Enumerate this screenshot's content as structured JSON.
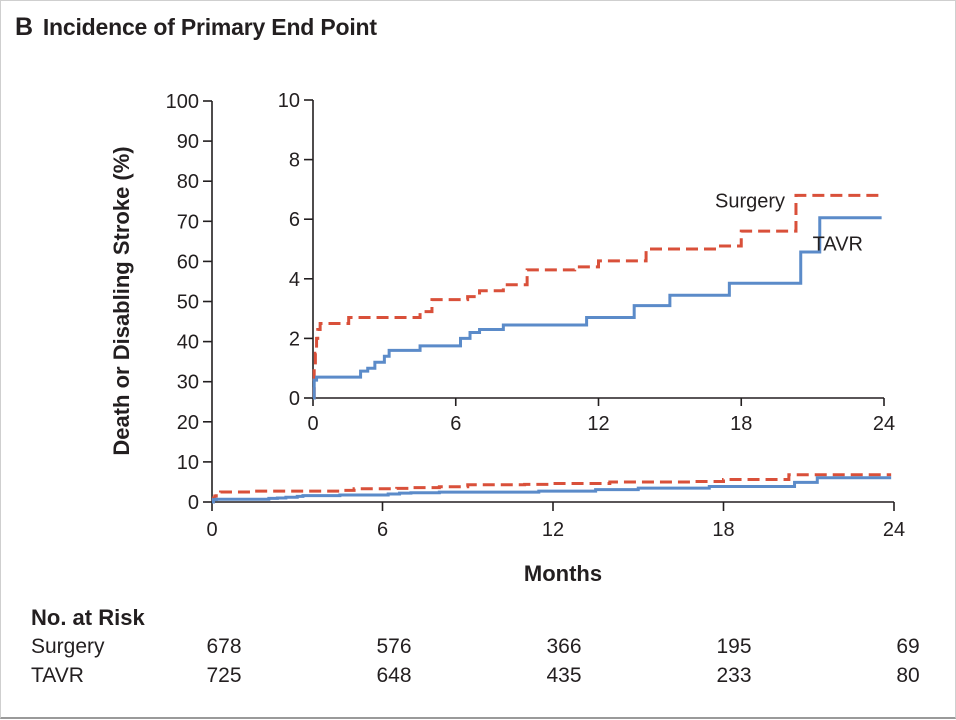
{
  "panel": {
    "letter": "B",
    "title": "Incidence of Primary End Point"
  },
  "colors": {
    "surgery": "#d9503a",
    "tavr": "#5b8bc9",
    "axis": "#231f20"
  },
  "chart_data": [
    {
      "id": "main",
      "type": "line",
      "step": true,
      "xlabel": "Months",
      "ylabel": "Death or Disabling Stroke (%)",
      "xlim": [
        0,
        24
      ],
      "ylim": [
        0,
        100
      ],
      "xticks": [
        0,
        6,
        12,
        18,
        24
      ],
      "yticks": [
        0,
        10,
        20,
        30,
        40,
        50,
        60,
        70,
        80,
        90,
        100
      ],
      "series": [
        {
          "name": "Surgery",
          "style": "dashed",
          "x": [
            0,
            0.05,
            0.1,
            0.15,
            0.2,
            0.3,
            1.5,
            4,
            4.5,
            5,
            6.5,
            7,
            8,
            9,
            11,
            12,
            14,
            15,
            17,
            18,
            19,
            20.3,
            23.9
          ],
          "y": [
            0,
            1.0,
            1.5,
            2.0,
            2.3,
            2.5,
            2.7,
            2.7,
            2.9,
            3.3,
            3.4,
            3.6,
            3.8,
            4.3,
            4.4,
            4.6,
            5.0,
            5.0,
            5.1,
            5.6,
            5.6,
            6.8,
            6.8
          ]
        },
        {
          "name": "TAVR",
          "style": "solid",
          "x": [
            0,
            0.05,
            0.15,
            0.3,
            2,
            2.3,
            2.6,
            3,
            3.2,
            4.5,
            6,
            6.2,
            6.6,
            7,
            8,
            10,
            11.5,
            13.5,
            15,
            17.5,
            20.5,
            21.3,
            23.9
          ],
          "y": [
            0,
            0.6,
            0.7,
            0.7,
            0.9,
            1.0,
            1.2,
            1.4,
            1.6,
            1.75,
            1.75,
            2.0,
            2.2,
            2.3,
            2.45,
            2.45,
            2.7,
            3.1,
            3.45,
            3.85,
            4.9,
            6.05,
            6.05
          ]
        }
      ]
    },
    {
      "id": "inset",
      "type": "line",
      "step": true,
      "xlim": [
        0,
        24
      ],
      "ylim": [
        0,
        10
      ],
      "xticks": [
        0,
        6,
        12,
        18,
        24
      ],
      "yticks": [
        0,
        2,
        4,
        6,
        8,
        10
      ],
      "labels": [
        {
          "series": "Surgery",
          "text": "Surgery"
        },
        {
          "series": "TAVR",
          "text": "TAVR"
        }
      ]
    }
  ],
  "risk_table": {
    "header": "No. at Risk",
    "months": [
      0,
      6,
      12,
      18,
      24
    ],
    "rows": [
      {
        "name": "Surgery",
        "values": [
          "678",
          "576",
          "366",
          "195",
          "69"
        ]
      },
      {
        "name": "TAVR",
        "values": [
          "725",
          "648",
          "435",
          "233",
          "80"
        ]
      }
    ]
  }
}
